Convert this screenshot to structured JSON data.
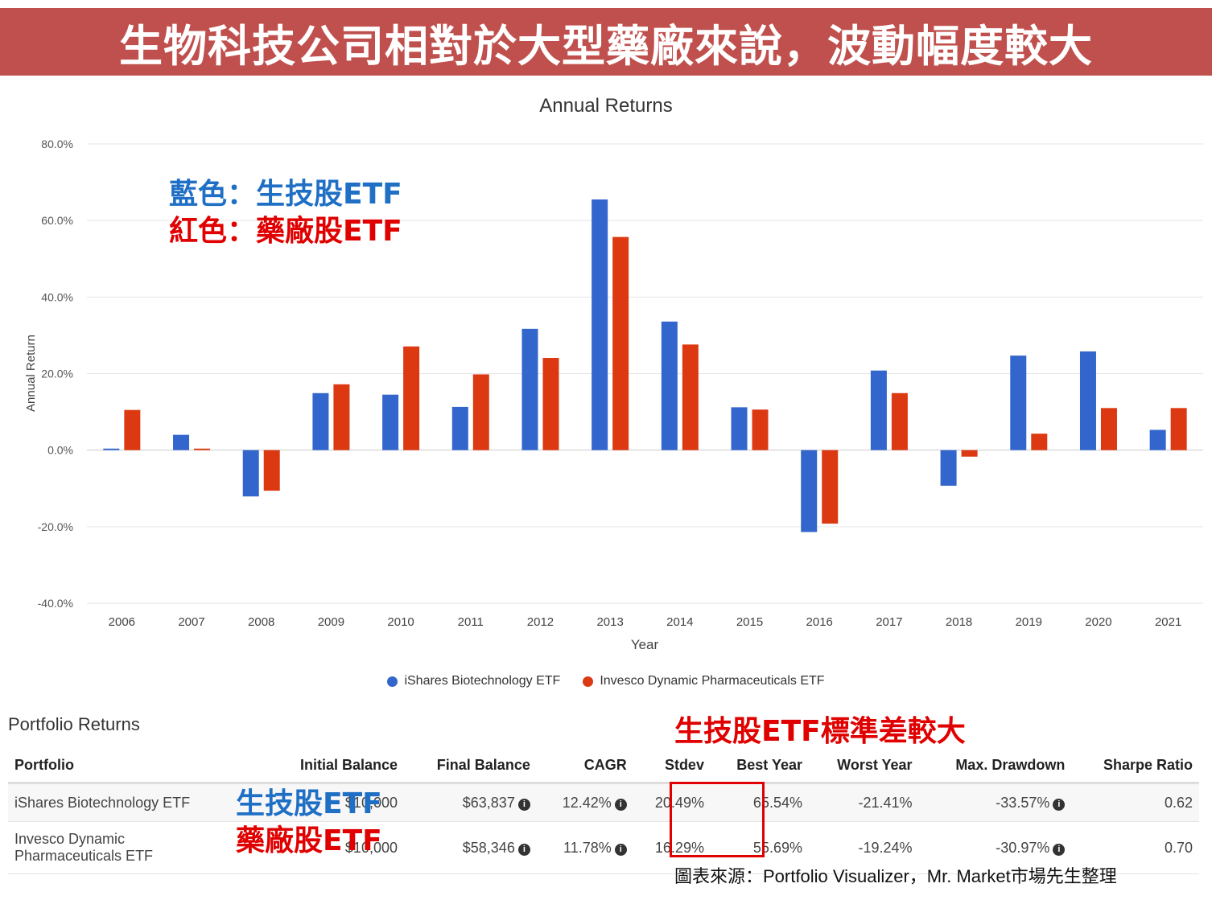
{
  "banner": {
    "text": "生物科技公司相對於大型藥廠來說，波動幅度較大"
  },
  "annotations": {
    "blue_label": "藍色：生技股ETF",
    "red_label": "紅色：藥廠股ETF",
    "stdev_note": "生技股ETF標準差較大",
    "row1_tag": "生技股ETF",
    "row2_tag": "藥廠股ETF"
  },
  "colors": {
    "banner": "#c0504d",
    "blue": "#3366cc",
    "red": "#dc3912",
    "annot_blue": "#1f6fc5",
    "annot_red": "#e00000"
  },
  "chart_data": {
    "type": "bar",
    "title": "Annual Returns",
    "xlabel": "Year",
    "ylabel": "Annual Return",
    "ylim": [
      -40,
      80
    ],
    "yticks": [
      "80.0%",
      "60.0%",
      "40.0%",
      "20.0%",
      "0.0%",
      "-20.0%",
      "-40.0%"
    ],
    "grid": true,
    "legend_position": "bottom",
    "categories": [
      "2006",
      "2007",
      "2008",
      "2009",
      "2010",
      "2011",
      "2012",
      "2013",
      "2014",
      "2015",
      "2016",
      "2017",
      "2018",
      "2019",
      "2020",
      "2021"
    ],
    "series": [
      {
        "name": "iShares Biotechnology ETF",
        "color": "#3366cc",
        "values": [
          0.4,
          4.0,
          -12.1,
          14.9,
          14.5,
          11.3,
          31.7,
          65.5,
          33.6,
          11.2,
          -21.4,
          20.8,
          -9.3,
          24.7,
          25.8,
          5.3
        ]
      },
      {
        "name": "Invesco Dynamic Pharmaceuticals ETF",
        "color": "#dc3912",
        "values": [
          10.5,
          0.4,
          -10.6,
          17.2,
          27.1,
          19.8,
          24.1,
          55.7,
          27.6,
          10.6,
          -19.2,
          14.9,
          -1.7,
          4.3,
          11.0,
          11.0
        ]
      }
    ]
  },
  "returns_table": {
    "title": "Portfolio Returns",
    "headers": [
      "Portfolio",
      "Initial Balance",
      "Final Balance",
      "CAGR",
      "Stdev",
      "Best Year",
      "Worst Year",
      "Max. Drawdown",
      "Sharpe Ratio"
    ],
    "rows": [
      {
        "portfolio": "iShares Biotechnology ETF",
        "initial": "$10,000",
        "final": "$63,837",
        "cagr": "12.42%",
        "stdev": "20.49%",
        "best": "65.54%",
        "worst": "-21.41%",
        "drawdown": "-33.57%",
        "sharpe": "0.62"
      },
      {
        "portfolio": "Invesco Dynamic Pharmaceuticals ETF",
        "initial": "$10,000",
        "final": "$58,346",
        "cagr": "11.78%",
        "stdev": "16.29%",
        "best": "55.69%",
        "worst": "-19.24%",
        "drawdown": "-30.97%",
        "sharpe": "0.70"
      }
    ]
  },
  "source": "圖表來源：Portfolio Visualizer，Mr. Market市場先生整理"
}
